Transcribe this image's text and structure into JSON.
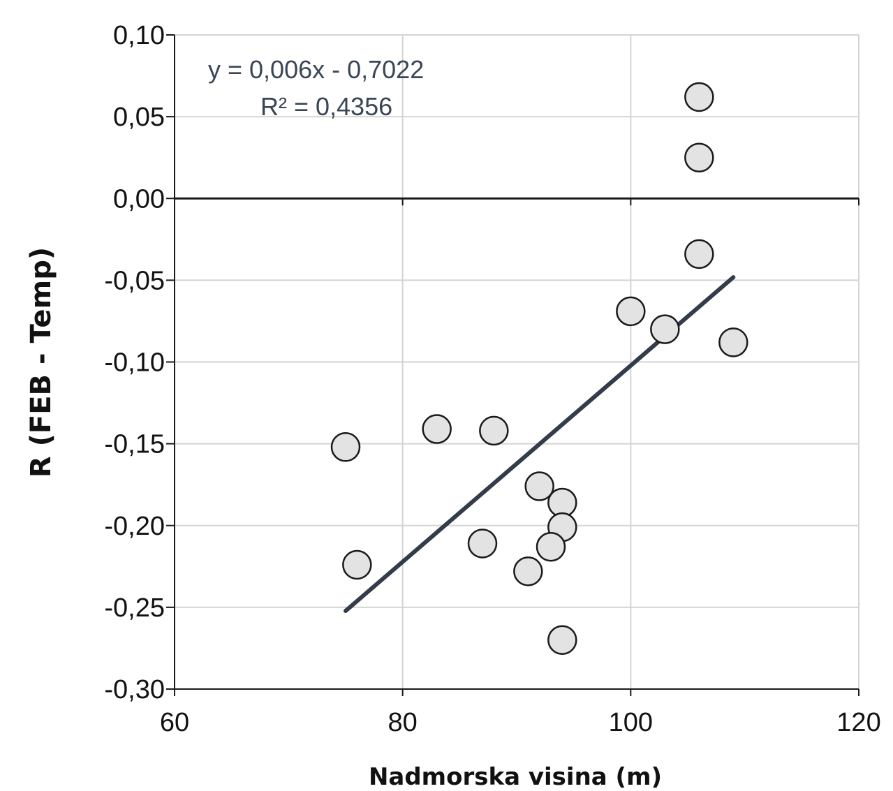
{
  "chart_data": {
    "type": "scatter",
    "xlabel": "Nadmorska visina (m)",
    "ylabel": "R (FEB - Temp)",
    "xlim": [
      60,
      120
    ],
    "ylim": [
      -0.3,
      0.1
    ],
    "x_ticks": [
      "60",
      "80",
      "100",
      "120"
    ],
    "y_ticks": [
      "0,10",
      "0,05",
      "0,00",
      "-0,05",
      "-0,10",
      "-0,15",
      "-0,20",
      "-0,25",
      "-0,30"
    ],
    "x_tick_values": [
      60,
      80,
      100,
      120
    ],
    "y_tick_values": [
      0.1,
      0.05,
      0.0,
      -0.05,
      -0.1,
      -0.15,
      -0.2,
      -0.25,
      -0.3
    ],
    "grid": true,
    "points": [
      {
        "x": 106,
        "y": 0.062
      },
      {
        "x": 106,
        "y": 0.025
      },
      {
        "x": 106,
        "y": -0.034
      },
      {
        "x": 100,
        "y": -0.069
      },
      {
        "x": 103,
        "y": -0.08
      },
      {
        "x": 109,
        "y": -0.088
      },
      {
        "x": 83,
        "y": -0.141
      },
      {
        "x": 88,
        "y": -0.142
      },
      {
        "x": 75,
        "y": -0.152
      },
      {
        "x": 92,
        "y": -0.176
      },
      {
        "x": 94,
        "y": -0.186
      },
      {
        "x": 94,
        "y": -0.201
      },
      {
        "x": 87,
        "y": -0.211
      },
      {
        "x": 93,
        "y": -0.213
      },
      {
        "x": 76,
        "y": -0.224
      },
      {
        "x": 91,
        "y": -0.228
      },
      {
        "x": 94,
        "y": -0.27
      }
    ],
    "trendline": {
      "x_range": [
        75,
        109
      ],
      "slope": 0.006,
      "intercept": -0.7022,
      "equation": "y = 0,006x - 0,7022",
      "r_squared": "R² = 0,4356"
    },
    "colors": {
      "point_fill": "#e3e3e3",
      "point_stroke": "#1a1a1a",
      "trendline": "#333c4a",
      "grid": "#d4d4d4",
      "equation_text": "#3a4656"
    }
  }
}
